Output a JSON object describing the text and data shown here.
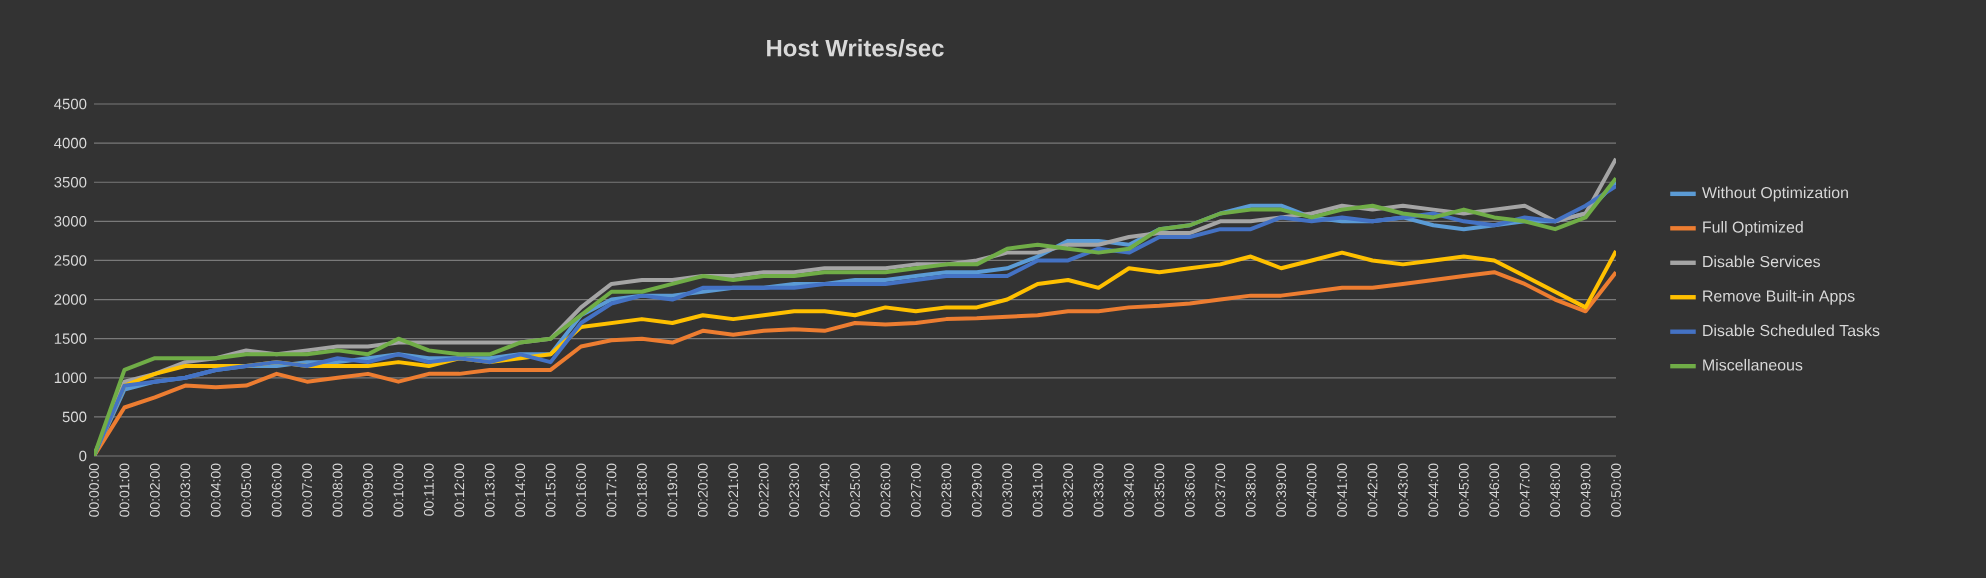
{
  "chart_data": {
    "type": "line",
    "title": "Host Writes/sec",
    "categories": [
      "00:00:00",
      "00:01:00",
      "00:02:00",
      "00:03:00",
      "00:04:00",
      "00:05:00",
      "00:06:00",
      "00:07:00",
      "00:08:00",
      "00:09:00",
      "00:10:00",
      "00:11:00",
      "00:12:00",
      "00:13:00",
      "00:14:00",
      "00:15:00",
      "00:16:00",
      "00:17:00",
      "00:18:00",
      "00:19:00",
      "00:20:00",
      "00:21:00",
      "00:22:00",
      "00:23:00",
      "00:24:00",
      "00:25:00",
      "00:26:00",
      "00:27:00",
      "00:28:00",
      "00:29:00",
      "00:30:00",
      "00:31:00",
      "00:32:00",
      "00:33:00",
      "00:34:00",
      "00:35:00",
      "00:36:00",
      "00:37:00",
      "00:38:00",
      "00:39:00",
      "00:40:00",
      "00:41:00",
      "00:42:00",
      "00:43:00",
      "00:44:00",
      "00:45:00",
      "00:46:00",
      "00:47:00",
      "00:48:00",
      "00:49:00",
      "00:50:00"
    ],
    "series": [
      {
        "name": "Without Optimization",
        "color": "#5b9bd5",
        "values": [
          0,
          850,
          950,
          1000,
          1100,
          1150,
          1150,
          1200,
          1200,
          1250,
          1300,
          1250,
          1250,
          1250,
          1300,
          1300,
          1800,
          2000,
          2050,
          2050,
          2100,
          2150,
          2150,
          2200,
          2200,
          2250,
          2250,
          2300,
          2350,
          2350,
          2400,
          2550,
          2750,
          2750,
          2700,
          2900,
          2950,
          3100,
          3200,
          3200,
          3050,
          3000,
          3000,
          3050,
          2950,
          2900,
          2950,
          3000,
          3000,
          3100,
          3500
        ]
      },
      {
        "name": "Full Optimized",
        "color": "#ed7d31",
        "values": [
          0,
          620,
          750,
          900,
          880,
          900,
          1050,
          950,
          1000,
          1050,
          950,
          1050,
          1050,
          1100,
          1100,
          1100,
          1400,
          1480,
          1500,
          1450,
          1600,
          1550,
          1600,
          1620,
          1600,
          1700,
          1680,
          1700,
          1750,
          1760,
          1780,
          1800,
          1850,
          1850,
          1900,
          1920,
          1950,
          2000,
          2050,
          2050,
          2100,
          2150,
          2150,
          2200,
          2250,
          2300,
          2350,
          2200,
          2000,
          1850,
          2350
        ]
      },
      {
        "name": "Disable Services",
        "color": "#a5a5a5",
        "values": [
          0,
          950,
          1050,
          1200,
          1250,
          1350,
          1300,
          1350,
          1400,
          1400,
          1450,
          1450,
          1450,
          1450,
          1450,
          1500,
          1900,
          2200,
          2250,
          2250,
          2300,
          2300,
          2350,
          2350,
          2400,
          2400,
          2400,
          2450,
          2450,
          2500,
          2600,
          2600,
          2700,
          2700,
          2800,
          2850,
          2850,
          3000,
          3000,
          3050,
          3100,
          3200,
          3150,
          3200,
          3150,
          3100,
          3150,
          3200,
          3000,
          3100,
          3800
        ]
      },
      {
        "name": "Remove Built-in Apps",
        "color": "#ffc000",
        "values": [
          0,
          900,
          1050,
          1150,
          1150,
          1150,
          1200,
          1150,
          1150,
          1150,
          1200,
          1150,
          1250,
          1200,
          1250,
          1300,
          1650,
          1700,
          1750,
          1700,
          1800,
          1750,
          1800,
          1850,
          1850,
          1800,
          1900,
          1850,
          1900,
          1900,
          2000,
          2200,
          2250,
          2150,
          2400,
          2350,
          2400,
          2450,
          2550,
          2400,
          2500,
          2600,
          2500,
          2450,
          2500,
          2550,
          2500,
          2300,
          2100,
          1900,
          2620
        ]
      },
      {
        "name": "Disable Scheduled Tasks",
        "color": "#4472c4",
        "values": [
          0,
          900,
          950,
          1000,
          1100,
          1150,
          1200,
          1150,
          1250,
          1200,
          1300,
          1200,
          1250,
          1200,
          1300,
          1200,
          1700,
          1950,
          2050,
          2000,
          2150,
          2150,
          2150,
          2150,
          2200,
          2200,
          2200,
          2250,
          2300,
          2300,
          2300,
          2500,
          2500,
          2650,
          2600,
          2800,
          2800,
          2900,
          2900,
          3050,
          3000,
          3050,
          3000,
          3050,
          3100,
          3000,
          2950,
          3050,
          3000,
          3200,
          3450
        ]
      },
      {
        "name": "Miscellaneous",
        "color": "#70ad47",
        "values": [
          0,
          1100,
          1250,
          1250,
          1250,
          1300,
          1300,
          1300,
          1350,
          1300,
          1500,
          1350,
          1300,
          1300,
          1450,
          1500,
          1800,
          2100,
          2100,
          2200,
          2300,
          2250,
          2300,
          2300,
          2350,
          2350,
          2350,
          2400,
          2450,
          2450,
          2650,
          2700,
          2650,
          2600,
          2650,
          2900,
          2950,
          3100,
          3150,
          3150,
          3050,
          3150,
          3200,
          3100,
          3050,
          3150,
          3050,
          3000,
          2900,
          3050,
          3550
        ]
      }
    ],
    "ylim": [
      0,
      4500
    ],
    "yticks": [
      0,
      500,
      1000,
      1500,
      2000,
      2500,
      3000,
      3500,
      4000,
      4500
    ],
    "grid": "y",
    "legend": "right",
    "marker": "none",
    "line_style": "solid"
  }
}
